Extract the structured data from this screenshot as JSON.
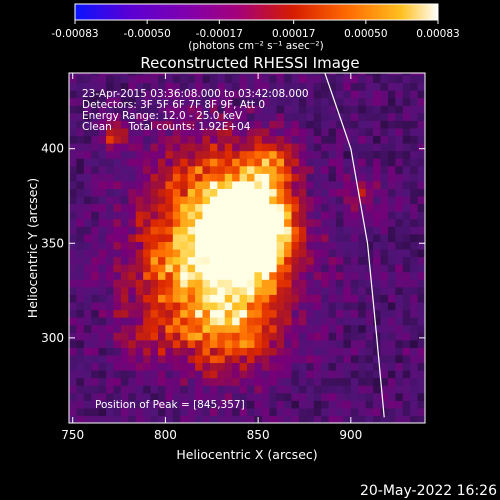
{
  "colorbar": {
    "ticks": [
      "-0.00083",
      "-0.00050",
      "-0.00017",
      "0.00017",
      "0.00050",
      "0.00083"
    ],
    "tick_values": [
      -0.00083,
      -0.0005,
      -0.00017,
      0.00017,
      0.0005,
      0.00083
    ],
    "range": [
      -0.00083,
      0.00083
    ],
    "units_label": "(photons cm⁻² s⁻¹ asec⁻²)",
    "colors": [
      "#0a14ff",
      "#5a00d4",
      "#7e00b0",
      "#a40078",
      "#d61c00",
      "#ff6a00",
      "#ffc020",
      "#ffffff"
    ]
  },
  "chart_data": {
    "type": "heatmap",
    "title": "Reconstructed RHESSI Image",
    "xlabel": "Heliocentric X (arcsec)",
    "ylabel": "Heliocentric Y (arcsec)",
    "xlim": [
      748,
      940
    ],
    "ylim": [
      255,
      440
    ],
    "x_ticks": [
      750,
      800,
      850,
      900
    ],
    "y_ticks": [
      300,
      350,
      400
    ],
    "peak": [
      845,
      357
    ],
    "limb_curve_x": [
      [
        888,
        440
      ],
      [
        900,
        400
      ],
      [
        909,
        350
      ],
      [
        914,
        300
      ],
      [
        918,
        255
      ]
    ],
    "limb_curve": [
      [
        886,
        440
      ],
      [
        900,
        400
      ],
      [
        909,
        350
      ],
      [
        914,
        300
      ],
      [
        918,
        258
      ]
    ],
    "annotations": [
      "23-Apr-2015 03:36:08.000 to 03:42:08.000",
      "Detectors: 3F 5F 6F 7F 8F 9F, Att 0",
      "Energy Range: 12.0 - 25.0 keV",
      "Clean     Total counts: 1.92E+04"
    ],
    "peak_label": "Position of Peak = [845,357]"
  },
  "timestamp": "20-May-2022 16:26"
}
